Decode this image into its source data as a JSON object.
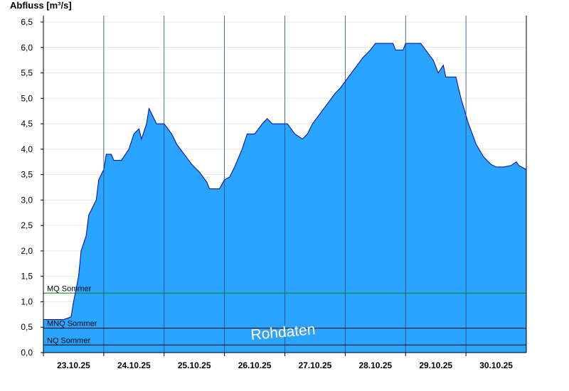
{
  "chart_data": {
    "type": "area",
    "y_label": "Abfluss [m³/s]",
    "annotation": "Rohdaten",
    "color": "#2aa5ff",
    "line_color": "#0000a0",
    "grid": true,
    "xlim": [
      "2025-10-23T00:00",
      "2025-10-31T00:00"
    ],
    "xticks": [
      {
        "value": "2025-10-23T00:00",
        "label": "23.10.25"
      },
      {
        "value": "2025-10-24T00:00",
        "label": "24.10.25"
      },
      {
        "value": "2025-10-25T00:00",
        "label": "25.10.25"
      },
      {
        "value": "2025-10-26T00:00",
        "label": "26.10.25"
      },
      {
        "value": "2025-10-27T00:00",
        "label": "27.10.25"
      },
      {
        "value": "2025-10-28T00:00",
        "label": "28.10.25"
      },
      {
        "value": "2025-10-29T00:00",
        "label": "29.10.25"
      },
      {
        "value": "2025-10-30T00:00",
        "label": "30.10.25"
      }
    ],
    "ylim": [
      0,
      6.5
    ],
    "yticks": [
      {
        "value": 0,
        "label": "0,0"
      },
      {
        "value": 0.5,
        "label": "0,5"
      },
      {
        "value": 1,
        "label": "1,0"
      },
      {
        "value": 1.5,
        "label": "1,5"
      },
      {
        "value": 2,
        "label": "2,0"
      },
      {
        "value": 2.5,
        "label": "2,5"
      },
      {
        "value": 3,
        "label": "3,0"
      },
      {
        "value": 3.5,
        "label": "3,5"
      },
      {
        "value": 4,
        "label": "4,0"
      },
      {
        "value": 4.5,
        "label": "4,5"
      },
      {
        "value": 5,
        "label": "5,0"
      },
      {
        "value": 5.5,
        "label": "5,5"
      },
      {
        "value": 6,
        "label": "6,0"
      },
      {
        "value": 6.5,
        "label": "6,5"
      }
    ],
    "x": [
      "2025-10-23T00:00",
      "2025-10-23T08:00",
      "2025-10-23T11:00",
      "2025-10-23T12:00",
      "2025-10-23T14:00",
      "2025-10-23T15:00",
      "2025-10-23T17:00",
      "2025-10-23T18:00",
      "2025-10-23T20:00",
      "2025-10-23T21:00",
      "2025-10-23T22:00",
      "2025-10-24T00:00",
      "2025-10-24T01:00",
      "2025-10-24T03:00",
      "2025-10-24T04:00",
      "2025-10-24T07:00",
      "2025-10-24T10:00",
      "2025-10-24T12:00",
      "2025-10-24T14:00",
      "2025-10-24T15:00",
      "2025-10-24T17:00",
      "2025-10-24T18:00",
      "2025-10-24T20:00",
      "2025-10-24T21:00",
      "2025-10-25T00:00",
      "2025-10-25T03:00",
      "2025-10-25T05:00",
      "2025-10-25T08:00",
      "2025-10-25T11:00",
      "2025-10-25T14:00",
      "2025-10-25T17:00",
      "2025-10-25T18:00",
      "2025-10-25T22:00",
      "2025-10-26T00:00",
      "2025-10-26T02:00",
      "2025-10-26T04:00",
      "2025-10-26T07:00",
      "2025-10-26T09:00",
      "2025-10-26T12:00",
      "2025-10-26T15:00",
      "2025-10-26T17:00",
      "2025-10-26T19:00",
      "2025-10-27T01:00",
      "2025-10-27T04:00",
      "2025-10-27T07:00",
      "2025-10-27T09:00",
      "2025-10-27T11:00",
      "2025-10-27T14:00",
      "2025-10-27T17:00",
      "2025-10-27T20:00",
      "2025-10-27T22:00",
      "2025-10-28T01:00",
      "2025-10-28T04:00",
      "2025-10-28T07:00",
      "2025-10-28T10:00",
      "2025-10-28T12:00",
      "2025-10-28T19:00",
      "2025-10-28T20:00",
      "2025-10-28T23:00",
      "2025-10-29T00:00",
      "2025-10-29T06:00",
      "2025-10-29T08:00",
      "2025-10-29T11:00",
      "2025-10-29T13:00",
      "2025-10-29T15:00",
      "2025-10-29T16:00",
      "2025-10-29T20:00",
      "2025-10-29T22:00",
      "2025-10-30T01:00",
      "2025-10-30T04:00",
      "2025-10-30T07:00",
      "2025-10-30T10:00",
      "2025-10-30T12:00",
      "2025-10-30T15:00",
      "2025-10-30T18:00",
      "2025-10-30T20:00",
      "2025-10-30T21:00",
      "2025-10-31T00:00"
    ],
    "values": [
      0.65,
      0.65,
      0.7,
      1.0,
      1.5,
      2.0,
      2.3,
      2.7,
      2.9,
      3.0,
      3.4,
      3.6,
      3.9,
      3.9,
      3.78,
      3.78,
      4.0,
      4.3,
      4.4,
      4.2,
      4.5,
      4.8,
      4.6,
      4.5,
      4.5,
      4.3,
      4.1,
      3.9,
      3.7,
      3.55,
      3.35,
      3.22,
      3.22,
      3.4,
      3.45,
      3.65,
      4.0,
      4.3,
      4.3,
      4.5,
      4.6,
      4.5,
      4.5,
      4.3,
      4.2,
      4.3,
      4.5,
      4.7,
      4.9,
      5.1,
      5.2,
      5.4,
      5.6,
      5.8,
      5.95,
      6.08,
      6.08,
      5.95,
      5.95,
      6.08,
      6.08,
      5.95,
      5.75,
      5.5,
      5.65,
      5.42,
      5.42,
      5.0,
      4.5,
      4.1,
      3.85,
      3.7,
      3.65,
      3.65,
      3.68,
      3.75,
      3.68,
      3.6
    ],
    "reference_lines": [
      {
        "label": "MQ Sommer",
        "value": 1.17,
        "color": "#008000"
      },
      {
        "label": "MNQ Sommer",
        "value": 0.48,
        "color": "#000000"
      },
      {
        "label": "NQ Sommer",
        "value": 0.15,
        "color": "#000000"
      }
    ]
  }
}
